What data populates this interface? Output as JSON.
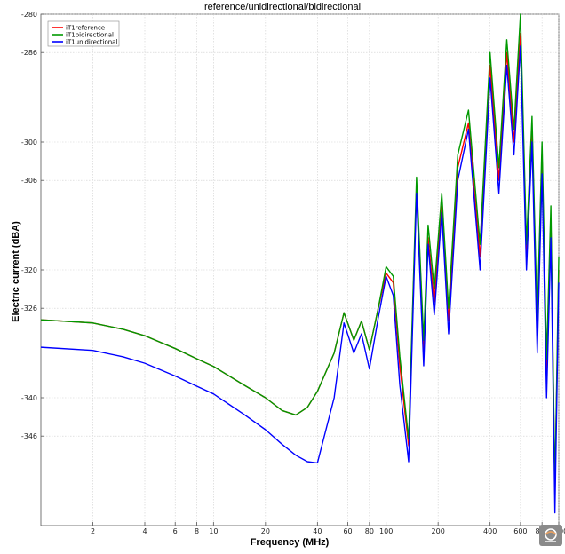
{
  "chart_data": {
    "type": "line",
    "title": "reference/unidirectional/bidirectional",
    "xlabel": "Frequency (MHz)",
    "ylabel": "Electric current (dBA)",
    "xscale": "log",
    "xlim": [
      1,
      1000
    ],
    "ylim": [
      -360,
      -280
    ],
    "x_ticks": [
      2,
      4,
      6,
      8,
      10,
      20,
      40,
      60,
      80,
      100,
      200,
      400,
      600,
      800,
      1000
    ],
    "x_tick_labels": [
      "2",
      "4",
      "6",
      "8",
      "10",
      "20",
      "40",
      "60",
      "80",
      "100",
      "200",
      "400",
      "600",
      "800",
      "1000"
    ],
    "y_ticks": [
      -280,
      -286,
      -300,
      -306,
      -320,
      -326,
      -340,
      -346
    ],
    "y_tick_labels": [
      "-280",
      "-286",
      "-300",
      "-306",
      "-320",
      "-326",
      "-340",
      "-346"
    ],
    "grid": true,
    "legend_position": "top-left",
    "series": [
      {
        "name": "iT1reference",
        "color": "#ff0000",
        "x": [
          1,
          2,
          3,
          4,
          6,
          8,
          10,
          15,
          20,
          25,
          30,
          35,
          40,
          50,
          57,
          65,
          72,
          80,
          90,
          100,
          110,
          120,
          135,
          150,
          165,
          175,
          190,
          210,
          230,
          260,
          300,
          350,
          400,
          450,
          500,
          550,
          600,
          650,
          700,
          750,
          800,
          850,
          900,
          950,
          1000
        ],
        "y": [
          -327.8,
          -328.3,
          -329.3,
          -330.3,
          -332.3,
          -333.9,
          -335.1,
          -338.0,
          -340.0,
          -342.0,
          -342.7,
          -341.5,
          -339.0,
          -333.0,
          -326.7,
          -331.0,
          -328.0,
          -332.5,
          -326.0,
          -320.5,
          -322.0,
          -335.0,
          -347.5,
          -307.0,
          -333.0,
          -315.0,
          -325.0,
          -310.0,
          -328.0,
          -304.0,
          -297.0,
          -318.0,
          -288.0,
          -306.0,
          -286.0,
          -300.0,
          -283.0,
          -318.0,
          -298.0,
          -330.0,
          -302.0,
          -336.0,
          -312.0,
          -355.0,
          -320.0
        ]
      },
      {
        "name": "iT1bidirectional",
        "color": "#009900",
        "x": [
          1,
          2,
          3,
          4,
          6,
          8,
          10,
          15,
          20,
          25,
          30,
          35,
          40,
          50,
          57,
          65,
          72,
          80,
          90,
          100,
          110,
          120,
          135,
          150,
          165,
          175,
          190,
          210,
          230,
          260,
          300,
          350,
          400,
          450,
          500,
          550,
          600,
          650,
          700,
          750,
          800,
          850,
          900,
          950,
          1000
        ],
        "y": [
          -327.8,
          -328.3,
          -329.3,
          -330.3,
          -332.3,
          -333.9,
          -335.1,
          -338.0,
          -340.0,
          -342.0,
          -342.7,
          -341.5,
          -339.0,
          -333.0,
          -326.7,
          -331.0,
          -328.0,
          -332.5,
          -326.0,
          -319.5,
          -321.0,
          -333.5,
          -346.5,
          -305.5,
          -331.0,
          -313.0,
          -323.0,
          -308.0,
          -326.0,
          -302.0,
          -295.0,
          -316.0,
          -286.0,
          -304.0,
          -284.0,
          -298.0,
          -280.0,
          -316.0,
          -296.0,
          -328.0,
          -300.0,
          -334.0,
          -310.0,
          -354.0,
          -318.0
        ]
      },
      {
        "name": "iT1unidirectional",
        "color": "#0000ff",
        "x": [
          1,
          2,
          3,
          4,
          6,
          8,
          10,
          15,
          20,
          25,
          30,
          35,
          40,
          50,
          57,
          65,
          72,
          80,
          90,
          100,
          110,
          120,
          135,
          150,
          165,
          175,
          190,
          210,
          230,
          260,
          300,
          350,
          400,
          450,
          500,
          550,
          600,
          650,
          700,
          750,
          800,
          850,
          900,
          950,
          1000
        ],
        "y": [
          -332.1,
          -332.6,
          -333.6,
          -334.6,
          -336.6,
          -338.2,
          -339.4,
          -342.6,
          -345.0,
          -347.3,
          -349.0,
          -350.0,
          -350.2,
          -340.0,
          -328.3,
          -333.0,
          -330.0,
          -335.5,
          -327.5,
          -321.0,
          -324.0,
          -338.0,
          -350.0,
          -308.0,
          -335.0,
          -316.0,
          -327.0,
          -311.0,
          -330.0,
          -306.0,
          -298.0,
          -320.0,
          -290.0,
          -308.0,
          -288.0,
          -302.0,
          -285.0,
          -320.0,
          -300.0,
          -333.0,
          -305.0,
          -340.0,
          -315.0,
          -358.0,
          -322.0
        ]
      }
    ]
  },
  "logo": {
    "name": "watermark-logo",
    "color": "#8a8a8a"
  }
}
